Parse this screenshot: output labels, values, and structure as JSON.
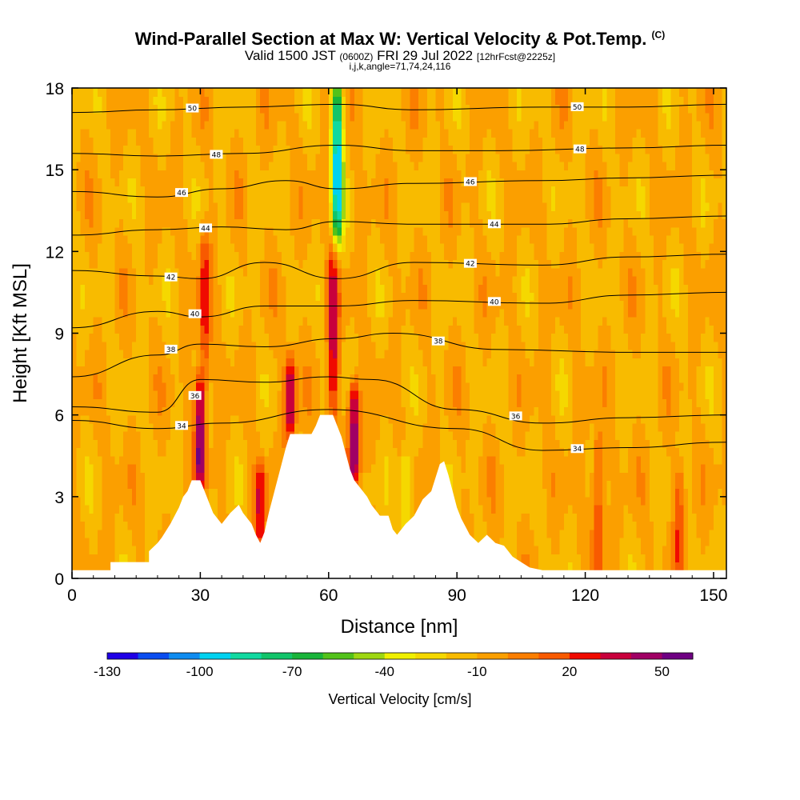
{
  "title": {
    "main": "Wind-Parallel Section at Max W: Vertical Velocity & Pot.Temp.",
    "mark": "(C)",
    "valid_prefix": "Valid 1500 JST",
    "valid_utc": "(0600Z)",
    "valid_date": "FRI 29 Jul 2022",
    "forecast": "[12hrFcst@2225z]",
    "indices": "i,j,k,angle=71,74,24,116"
  },
  "chart_data": {
    "type": "heatmap",
    "xlabel": "Distance [nm]",
    "ylabel": "Height [Kft MSL]",
    "xlim": [
      0,
      153
    ],
    "ylim": [
      0,
      18
    ],
    "x_ticks": [
      0,
      30,
      60,
      90,
      120,
      150
    ],
    "y_ticks": [
      0,
      3,
      6,
      9,
      12,
      15,
      18
    ],
    "colorbar": {
      "title": "Vertical Velocity [cm/s]",
      "tick_values": [
        -130,
        -100,
        -70,
        -40,
        -10,
        20,
        50
      ],
      "range": [
        -130,
        60
      ],
      "step": 10,
      "colors": [
        "#1f00e6",
        "#0a4df0",
        "#0f8cf0",
        "#00d2f0",
        "#11d9a0",
        "#12c46a",
        "#19b43a",
        "#53c21a",
        "#9ed712",
        "#f0f000",
        "#f5d800",
        "#f8bb00",
        "#fb9f00",
        "#fb7e00",
        "#f85a00",
        "#f00a00",
        "#c8003c",
        "#a00064",
        "#6e0082"
      ]
    },
    "terrain_profile": [
      [
        0,
        0.3
      ],
      [
        9,
        0.3
      ],
      [
        9,
        0.6
      ],
      [
        18,
        0.6
      ],
      [
        18,
        1.0
      ],
      [
        20,
        1.3
      ],
      [
        21,
        1.5
      ],
      [
        23,
        2.0
      ],
      [
        25,
        2.6
      ],
      [
        26,
        3.0
      ],
      [
        27,
        3.2
      ],
      [
        28,
        3.6
      ],
      [
        30,
        3.6
      ],
      [
        31,
        3.2
      ],
      [
        32,
        2.8
      ],
      [
        33,
        2.4
      ],
      [
        35,
        2.0
      ],
      [
        37,
        2.4
      ],
      [
        39,
        2.7
      ],
      [
        40,
        2.4
      ],
      [
        42,
        2.0
      ],
      [
        43,
        1.6
      ],
      [
        44,
        1.3
      ],
      [
        45,
        1.7
      ],
      [
        46,
        2.4
      ],
      [
        47,
        3.0
      ],
      [
        48,
        3.6
      ],
      [
        49,
        4.2
      ],
      [
        50,
        4.8
      ],
      [
        51,
        5.3
      ],
      [
        53,
        5.3
      ],
      [
        56,
        5.3
      ],
      [
        57,
        5.6
      ],
      [
        58,
        6.0
      ],
      [
        61,
        6.0
      ],
      [
        62,
        5.6
      ],
      [
        63,
        5.2
      ],
      [
        64,
        4.6
      ],
      [
        65,
        4.0
      ],
      [
        66,
        3.6
      ],
      [
        67,
        3.4
      ],
      [
        68,
        3.2
      ],
      [
        69,
        3.0
      ],
      [
        70,
        2.7
      ],
      [
        72,
        2.3
      ],
      [
        74,
        2.3
      ],
      [
        75,
        1.8
      ],
      [
        76,
        1.6
      ],
      [
        77,
        1.8
      ],
      [
        78,
        2.0
      ],
      [
        80,
        2.3
      ],
      [
        81,
        2.6
      ],
      [
        82,
        2.9
      ],
      [
        84,
        3.2
      ],
      [
        85,
        3.7
      ],
      [
        86,
        4.2
      ],
      [
        87,
        4.3
      ],
      [
        88,
        3.8
      ],
      [
        89,
        3.2
      ],
      [
        90,
        2.6
      ],
      [
        91,
        2.2
      ],
      [
        92,
        1.9
      ],
      [
        93,
        1.6
      ],
      [
        95,
        1.3
      ],
      [
        97,
        1.6
      ],
      [
        99,
        1.3
      ],
      [
        101,
        1.2
      ],
      [
        103,
        0.8
      ],
      [
        105,
        0.6
      ],
      [
        107,
        0.4
      ],
      [
        110,
        0.3
      ],
      [
        115,
        0.3
      ],
      [
        120,
        0.3
      ],
      [
        130,
        0.3
      ],
      [
        140,
        0.3
      ],
      [
        153,
        0.3
      ]
    ],
    "theta_contours": [
      {
        "value": 34,
        "label": "34",
        "points": [
          [
            0,
            5.8
          ],
          [
            20,
            5.5
          ],
          [
            35,
            5.7
          ],
          [
            60,
            6.2
          ],
          [
            90,
            5.5
          ],
          [
            110,
            4.7
          ],
          [
            130,
            4.8
          ],
          [
            153,
            5.0
          ]
        ]
      },
      {
        "value": 36,
        "label": "36",
        "points": [
          [
            0,
            6.3
          ],
          [
            20,
            6.1
          ],
          [
            30,
            7.3
          ],
          [
            45,
            7.2
          ],
          [
            60,
            7.4
          ],
          [
            70,
            7.3
          ],
          [
            90,
            6.2
          ],
          [
            110,
            5.7
          ],
          [
            130,
            5.9
          ],
          [
            153,
            6.0
          ]
        ]
      },
      {
        "value": 38,
        "label": "38",
        "points": [
          [
            0,
            7.4
          ],
          [
            20,
            8.2
          ],
          [
            30,
            8.6
          ],
          [
            45,
            8.5
          ],
          [
            62,
            8.8
          ],
          [
            75,
            9.0
          ],
          [
            100,
            8.4
          ],
          [
            130,
            8.3
          ],
          [
            153,
            8.3
          ]
        ]
      },
      {
        "value": 40,
        "label": "40",
        "points": [
          [
            0,
            9.2
          ],
          [
            20,
            9.8
          ],
          [
            30,
            9.6
          ],
          [
            45,
            10.0
          ],
          [
            62,
            10.0
          ],
          [
            80,
            10.2
          ],
          [
            110,
            10.1
          ],
          [
            130,
            10.4
          ],
          [
            153,
            10.5
          ]
        ]
      },
      {
        "value": 42,
        "label": "42",
        "points": [
          [
            0,
            11.3
          ],
          [
            20,
            11.1
          ],
          [
            30,
            11.0
          ],
          [
            45,
            11.6
          ],
          [
            62,
            11.0
          ],
          [
            80,
            11.6
          ],
          [
            110,
            11.5
          ],
          [
            130,
            11.8
          ],
          [
            153,
            11.9
          ]
        ]
      },
      {
        "value": 44,
        "label": "44",
        "points": [
          [
            0,
            12.6
          ],
          [
            20,
            12.8
          ],
          [
            35,
            12.9
          ],
          [
            50,
            12.8
          ],
          [
            62,
            13.1
          ],
          [
            80,
            13.0
          ],
          [
            110,
            13.0
          ],
          [
            130,
            13.2
          ],
          [
            153,
            13.3
          ]
        ]
      },
      {
        "value": 46,
        "label": "46",
        "points": [
          [
            0,
            14.2
          ],
          [
            20,
            14.0
          ],
          [
            35,
            14.3
          ],
          [
            50,
            14.6
          ],
          [
            62,
            14.3
          ],
          [
            80,
            14.5
          ],
          [
            110,
            14.6
          ],
          [
            130,
            14.7
          ],
          [
            153,
            14.8
          ]
        ]
      },
      {
        "value": 48,
        "label": "48",
        "points": [
          [
            0,
            15.6
          ],
          [
            20,
            15.5
          ],
          [
            40,
            15.6
          ],
          [
            62,
            15.9
          ],
          [
            80,
            15.7
          ],
          [
            100,
            15.7
          ],
          [
            130,
            15.8
          ],
          [
            153,
            15.9
          ]
        ]
      },
      {
        "value": 50,
        "label": "50",
        "points": [
          [
            0,
            17.1
          ],
          [
            20,
            17.2
          ],
          [
            40,
            17.3
          ],
          [
            62,
            17.4
          ],
          [
            80,
            17.2
          ],
          [
            110,
            17.3
          ],
          [
            130,
            17.3
          ],
          [
            153,
            17.4
          ]
        ]
      }
    ],
    "velocity_features": [
      {
        "x": 30,
        "z_min": 3.6,
        "z_max": 7.2,
        "w_max": 55
      },
      {
        "x": 31,
        "z_min": 7.5,
        "z_max": 12.5,
        "w_max": 25
      },
      {
        "x": 51,
        "z_min": 5.3,
        "z_max": 8.0,
        "w_max": 45
      },
      {
        "x": 61,
        "z_min": 6.0,
        "z_max": 12.0,
        "w_max": 35
      },
      {
        "x": 62,
        "z_min": 12.5,
        "z_max": 18.0,
        "w_min": -100
      },
      {
        "x": 66,
        "z_min": 3.6,
        "z_max": 7.0,
        "w_max": 55
      },
      {
        "x": 44,
        "z_min": 1.3,
        "z_max": 4.0,
        "w_max": 30
      },
      {
        "x": 78,
        "z_min": 2.0,
        "z_max": 4.5,
        "w_min": -40
      },
      {
        "x": 123,
        "z_min": 0.3,
        "z_max": 5.0,
        "w_max": 25
      },
      {
        "x": 142,
        "z_min": 0.3,
        "z_max": 4.0,
        "w_max": 20
      }
    ]
  }
}
